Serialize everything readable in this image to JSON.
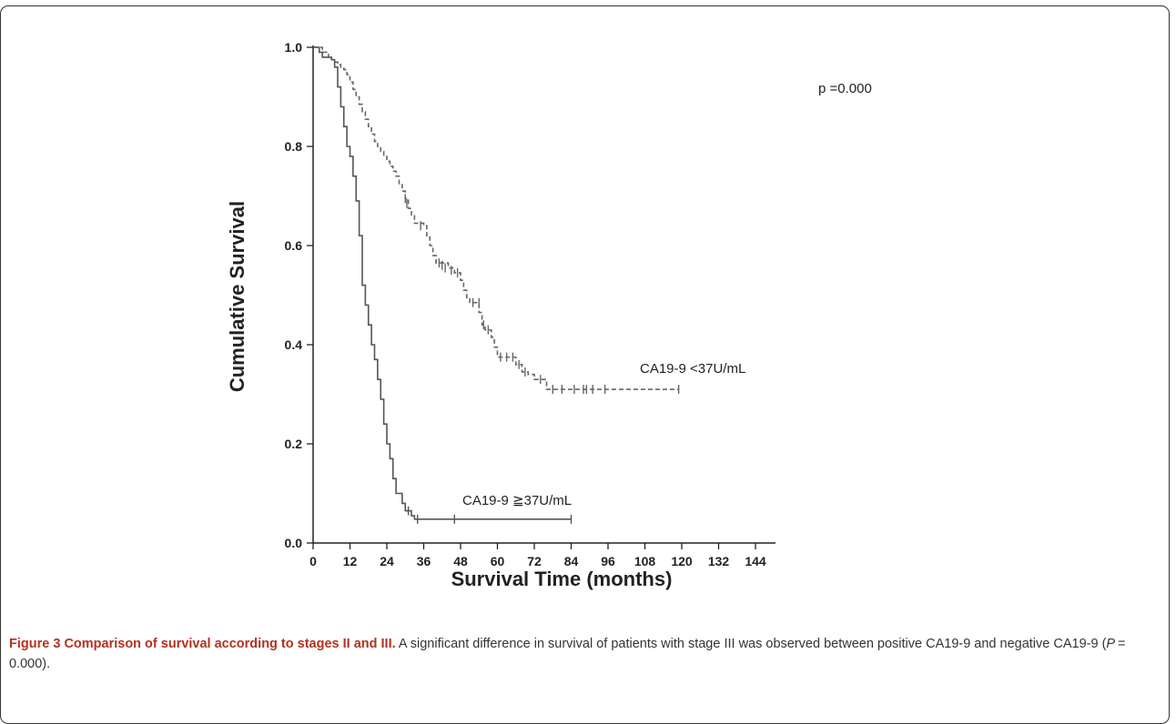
{
  "chart_data": {
    "type": "line",
    "subtype": "kaplan-meier step curve",
    "xlabel": "Survival Time (months)",
    "ylabel": "Cumulative Survival",
    "xlim": [
      0,
      144
    ],
    "ylim": [
      0.0,
      1.0
    ],
    "xticks": [
      "0",
      "12",
      "24",
      "36",
      "48",
      "60",
      "72",
      "84",
      "96",
      "108",
      "120",
      "132",
      "144"
    ],
    "yticks": [
      "0.0",
      "0.2",
      "0.4",
      "0.6",
      "0.8",
      "1.0"
    ],
    "grid": false,
    "annotations": {
      "pvalue": "p =0.000",
      "label_negative": "CA19-9 <37U/mL",
      "label_positive": "CA19-9 ≧37U/mL"
    },
    "series": [
      {
        "style": "dashed",
        "color": "#666666",
        "steps": [
          [
            0,
            1.0
          ],
          [
            3,
            0.99
          ],
          [
            5,
            0.98
          ],
          [
            6,
            0.975
          ],
          [
            7,
            0.97
          ],
          [
            8,
            0.965
          ],
          [
            9,
            0.96
          ],
          [
            10,
            0.955
          ],
          [
            11,
            0.945
          ],
          [
            12,
            0.93
          ],
          [
            13,
            0.915
          ],
          [
            14,
            0.9
          ],
          [
            15,
            0.885
          ],
          [
            16,
            0.87
          ],
          [
            17,
            0.855
          ],
          [
            18,
            0.84
          ],
          [
            19,
            0.825
          ],
          [
            20,
            0.81
          ],
          [
            21,
            0.8
          ],
          [
            22,
            0.79
          ],
          [
            23,
            0.78
          ],
          [
            24,
            0.77
          ],
          [
            25,
            0.76
          ],
          [
            26,
            0.75
          ],
          [
            27,
            0.74
          ],
          [
            28,
            0.725
          ],
          [
            29,
            0.71
          ],
          [
            30,
            0.695
          ],
          [
            31,
            0.675
          ],
          [
            32,
            0.66
          ],
          [
            33,
            0.645
          ],
          [
            36,
            0.64
          ],
          [
            37,
            0.62
          ],
          [
            38,
            0.6
          ],
          [
            39,
            0.58
          ],
          [
            40,
            0.565
          ],
          [
            44,
            0.555
          ],
          [
            46,
            0.545
          ],
          [
            48,
            0.53
          ],
          [
            49,
            0.51
          ],
          [
            50,
            0.495
          ],
          [
            51,
            0.485
          ],
          [
            53,
            0.485
          ],
          [
            54,
            0.465
          ],
          [
            55,
            0.44
          ],
          [
            56,
            0.43
          ],
          [
            58,
            0.415
          ],
          [
            59,
            0.395
          ],
          [
            60,
            0.375
          ],
          [
            66,
            0.36
          ],
          [
            68,
            0.345
          ],
          [
            70,
            0.34
          ],
          [
            72,
            0.33
          ],
          [
            75,
            0.33
          ],
          [
            76,
            0.31
          ],
          [
            119,
            0.31
          ]
        ],
        "censored": [
          [
            30,
            0.695
          ],
          [
            30.5,
            0.685
          ],
          [
            35,
            0.64
          ],
          [
            41,
            0.565
          ],
          [
            42,
            0.56
          ],
          [
            43,
            0.555
          ],
          [
            45,
            0.55
          ],
          [
            47,
            0.545
          ],
          [
            52,
            0.485
          ],
          [
            54,
            0.485
          ],
          [
            55.5,
            0.44
          ],
          [
            57,
            0.43
          ],
          [
            61,
            0.375
          ],
          [
            63,
            0.375
          ],
          [
            65,
            0.375
          ],
          [
            67,
            0.36
          ],
          [
            69,
            0.345
          ],
          [
            74,
            0.33
          ],
          [
            78,
            0.31
          ],
          [
            81,
            0.31
          ],
          [
            85,
            0.31
          ],
          [
            88,
            0.31
          ],
          [
            89,
            0.31
          ],
          [
            91,
            0.31
          ],
          [
            95,
            0.31
          ],
          [
            119,
            0.31
          ]
        ]
      },
      {
        "style": "solid",
        "color": "#555555",
        "steps": [
          [
            0,
            1.0
          ],
          [
            2,
            0.99
          ],
          [
            3,
            0.98
          ],
          [
            6,
            0.975
          ],
          [
            7,
            0.96
          ],
          [
            8,
            0.92
          ],
          [
            9,
            0.88
          ],
          [
            10,
            0.84
          ],
          [
            11,
            0.8
          ],
          [
            12,
            0.78
          ],
          [
            13,
            0.74
          ],
          [
            14,
            0.69
          ],
          [
            15,
            0.62
          ],
          [
            16,
            0.52
          ],
          [
            17,
            0.48
          ],
          [
            18,
            0.44
          ],
          [
            19,
            0.4
          ],
          [
            20,
            0.37
          ],
          [
            21,
            0.33
          ],
          [
            22,
            0.29
          ],
          [
            23,
            0.24
          ],
          [
            24,
            0.2
          ],
          [
            25,
            0.17
          ],
          [
            26,
            0.13
          ],
          [
            27,
            0.1
          ],
          [
            29,
            0.08
          ],
          [
            30,
            0.065
          ],
          [
            32,
            0.055
          ],
          [
            33,
            0.048
          ],
          [
            84,
            0.048
          ]
        ],
        "censored": [
          [
            31,
            0.065
          ],
          [
            34,
            0.048
          ],
          [
            46,
            0.048
          ],
          [
            84,
            0.048
          ]
        ]
      }
    ]
  },
  "caption": {
    "label": "Figure 3",
    "title": "Comparison of survival according to stages II and III.",
    "text_before_p": " A significant difference in survival of patients with stage III was observed between positive CA19-9 and negative CA19-9 (",
    "p_symbol": "P",
    "p_value": " = 0.000).",
    "text_after_p": ""
  }
}
